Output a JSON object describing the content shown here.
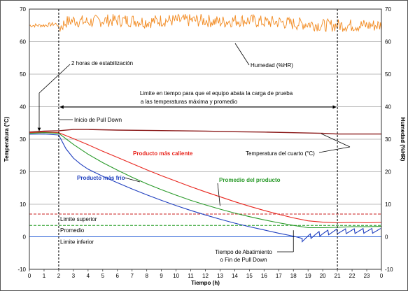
{
  "chart_data": {
    "type": "line",
    "title": "",
    "xlabel": "Tiempo (h)",
    "ylabel": "Temperatura (°C)",
    "y2label": "Humedad (%HR)",
    "xlim": [
      0,
      24
    ],
    "ylim": [
      -10,
      70
    ],
    "y2lim": [
      -10,
      70
    ],
    "x_ticks": [
      "0",
      "1",
      "2",
      "3",
      "4",
      "5",
      "6",
      "7",
      "8",
      "9",
      "10",
      "11",
      "12",
      "13",
      "14",
      "15",
      "16",
      "17",
      "18",
      "19",
      "20",
      "21",
      "22",
      "23",
      "0"
    ],
    "y_ticks": [
      -10,
      0,
      10,
      20,
      30,
      40,
      50,
      60,
      70
    ],
    "y2_ticks": [
      -10,
      0,
      10,
      20,
      30,
      40,
      50,
      60,
      70
    ],
    "grid": true,
    "colors": {
      "humidity": "#f28a20",
      "room": "#8b1a1a",
      "hot": "#e8241c",
      "average": "#2a9a2a",
      "cold": "#1f3fbf",
      "upper": "#c81e1e",
      "mid": "#1f9a1f",
      "lower": "#2a5fd6",
      "grid": "#a8a8a8"
    },
    "series": [
      {
        "name": "Humedad (%HR)",
        "key": "humidity",
        "x": [
          0,
          1,
          1.9,
          2,
          2.5,
          3,
          4,
          5,
          6,
          7,
          8,
          9,
          10,
          11,
          12,
          13,
          14,
          15,
          16,
          17,
          18,
          19,
          20,
          21,
          22,
          23,
          24
        ],
        "y": [
          65,
          65,
          65.5,
          64,
          66,
          66.5,
          66,
          66.5,
          66.5,
          66.5,
          66,
          66.5,
          66.5,
          66.5,
          66.5,
          66,
          66.5,
          66.5,
          66,
          66,
          65.5,
          65.5,
          65,
          65,
          65,
          65,
          65
        ]
      },
      {
        "name": "Temperatura del cuarto (°C)",
        "key": "room",
        "x": [
          0,
          1,
          2,
          3,
          4,
          6,
          8,
          10,
          12,
          14,
          16,
          18,
          20,
          21,
          22,
          24
        ],
        "y": [
          32.2,
          32.5,
          32.6,
          33,
          33,
          32.8,
          32.7,
          32.6,
          32.5,
          32.3,
          32.2,
          32,
          31.8,
          31.6,
          31.6,
          31.6
        ]
      },
      {
        "name": "Producto más caliente",
        "key": "hot",
        "x": [
          0,
          1,
          2,
          3,
          4,
          5,
          6,
          7,
          8,
          9,
          10,
          11,
          12,
          13,
          14,
          15,
          16,
          17,
          18,
          19,
          20,
          21,
          22,
          23,
          24
        ],
        "y": [
          32,
          32.2,
          32,
          30.2,
          28.3,
          26.3,
          24.4,
          22.5,
          20.6,
          18.8,
          17.1,
          15.4,
          13.8,
          12.3,
          10.8,
          9.4,
          8.1,
          6.9,
          5.8,
          4.9,
          4.5,
          4.3,
          4.4,
          4.3,
          4.4
        ]
      },
      {
        "name": "Promedio del producto",
        "key": "average",
        "x": [
          0,
          1,
          2,
          3,
          4,
          5,
          6,
          7,
          8,
          9,
          10,
          11,
          12,
          13,
          14,
          15,
          16,
          17,
          18,
          19,
          20,
          21,
          22,
          23,
          24
        ],
        "y": [
          31.8,
          32,
          31.8,
          28.4,
          25.4,
          22.8,
          20.5,
          18.3,
          16.3,
          14.5,
          12.8,
          11.2,
          9.8,
          8.5,
          7.3,
          6.2,
          5.2,
          4.3,
          3.5,
          2.8,
          2.8,
          2.9,
          3.1,
          3.1,
          3.2
        ]
      },
      {
        "name": "Producto más frío",
        "key": "cold",
        "x": [
          0,
          1,
          2,
          2.5,
          3,
          3.5,
          4,
          5,
          6,
          7,
          8,
          9,
          10,
          11,
          12,
          13,
          14,
          15,
          16,
          17,
          18,
          18.6,
          19,
          19.5,
          20,
          21,
          22,
          23,
          24
        ],
        "y": [
          31.5,
          31.6,
          31.3,
          27,
          24.2,
          22.3,
          20.8,
          18.6,
          16.6,
          14.7,
          12.9,
          11.2,
          9.6,
          8.1,
          6.7,
          5.4,
          4.2,
          3.1,
          2.1,
          1.1,
          0.2,
          -0.5,
          0.2,
          0.9,
          1.4,
          1.9,
          2,
          2.1,
          2.1
        ]
      }
    ],
    "reference_lines": [
      {
        "key": "upper",
        "y": 7,
        "label": "Limite superior"
      },
      {
        "key": "mid",
        "y": 3.5,
        "label": "Promedio"
      },
      {
        "key": "lower",
        "y": 0,
        "label": "Limite inferior"
      }
    ],
    "vertical_markers": [
      2,
      21
    ],
    "annotations": {
      "stabilization": "2 horas de estabilización",
      "humidity": "Humedad (%HR)",
      "time_limit_1": "Limite en tiempo para que el equipo abata la carga de prueba",
      "time_limit_2": "a las temperaturas máxima y promedio",
      "pull_down_start": "Inicio de Pull Down",
      "hot": "Producto más caliente",
      "average": "Promedio del producto",
      "cold": "Producto más frío",
      "room": "Temperatura del cuarto (°C)",
      "pull_down_end_1": "Tiempo de Abatimiento",
      "pull_down_end_2": "o Fin de Pull Down"
    }
  }
}
